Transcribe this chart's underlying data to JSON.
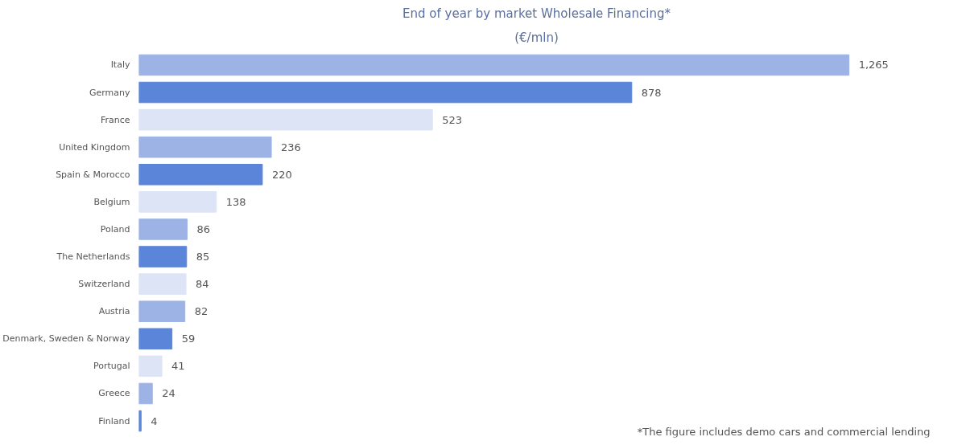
{
  "chart_data": {
    "type": "bar",
    "orientation": "horizontal",
    "title": "End of year by market Wholesale Financing*",
    "subtitle": "(€/mln)",
    "categories": [
      "Italy",
      "Germany",
      "France",
      "United Kingdom",
      "Spain & Morocco",
      "Belgium",
      "Poland",
      "The Netherlands",
      "Switzerland",
      "Austria",
      "Denmark, Sweden & Norway",
      "Portugal",
      "Greece",
      "Finland"
    ],
    "values": [
      1265,
      878,
      523,
      236,
      220,
      138,
      86,
      85,
      84,
      82,
      59,
      41,
      24,
      4
    ],
    "colors": [
      "#9db3e6",
      "#5b85d8",
      "#dde4f5",
      "#9db3e6",
      "#5b85d8",
      "#dde4f5",
      "#9db3e6",
      "#5b85d8",
      "#dde4f5",
      "#9db3e6",
      "#5b85d8",
      "#dde4f5",
      "#9db3e6",
      "#5b85d8"
    ],
    "value_labels": [
      "1,265",
      "878",
      "523",
      "236",
      "220",
      "138",
      "86",
      "85",
      "84",
      "82",
      "59",
      "41",
      "24",
      "4"
    ],
    "annotations": [
      "*The figure includes demo cars and commercial lending"
    ],
    "grid": false
  }
}
